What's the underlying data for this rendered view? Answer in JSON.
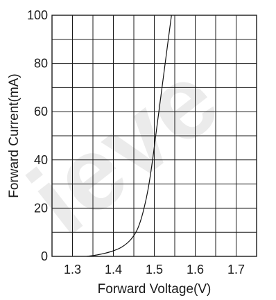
{
  "watermark_text": "ieve",
  "chart_data": {
    "type": "line",
    "title": "",
    "xlabel": "Forward Voltage(V)",
    "ylabel": "Forward Current(mA)",
    "xlim": [
      1.25,
      1.75
    ],
    "ylim": [
      0,
      100
    ],
    "x_ticks": [
      1.3,
      1.4,
      1.5,
      1.6,
      1.7
    ],
    "x_tick_labels": [
      "1.3",
      "1.4",
      "1.5",
      "1.6",
      "1.7"
    ],
    "y_ticks": [
      0,
      20,
      40,
      60,
      80,
      100
    ],
    "y_tick_labels": [
      "0",
      "20",
      "40",
      "60",
      "80",
      "100"
    ],
    "grid": true,
    "x_grid_step": 0.05,
    "y_grid_step": 10,
    "series": [
      {
        "points": [
          {
            "x": 1.335,
            "y": 0.0
          },
          {
            "x": 1.36,
            "y": 0.6
          },
          {
            "x": 1.38,
            "y": 1.3
          },
          {
            "x": 1.4,
            "y": 2.3
          },
          {
            "x": 1.42,
            "y": 3.8
          },
          {
            "x": 1.44,
            "y": 6.5
          },
          {
            "x": 1.455,
            "y": 10.0
          },
          {
            "x": 1.465,
            "y": 14.0
          },
          {
            "x": 1.475,
            "y": 20.0
          },
          {
            "x": 1.485,
            "y": 28.0
          },
          {
            "x": 1.495,
            "y": 39.0
          },
          {
            "x": 1.505,
            "y": 52.0
          },
          {
            "x": 1.515,
            "y": 65.0
          },
          {
            "x": 1.525,
            "y": 78.0
          },
          {
            "x": 1.535,
            "y": 91.0
          },
          {
            "x": 1.542,
            "y": 100.0
          }
        ]
      }
    ]
  }
}
